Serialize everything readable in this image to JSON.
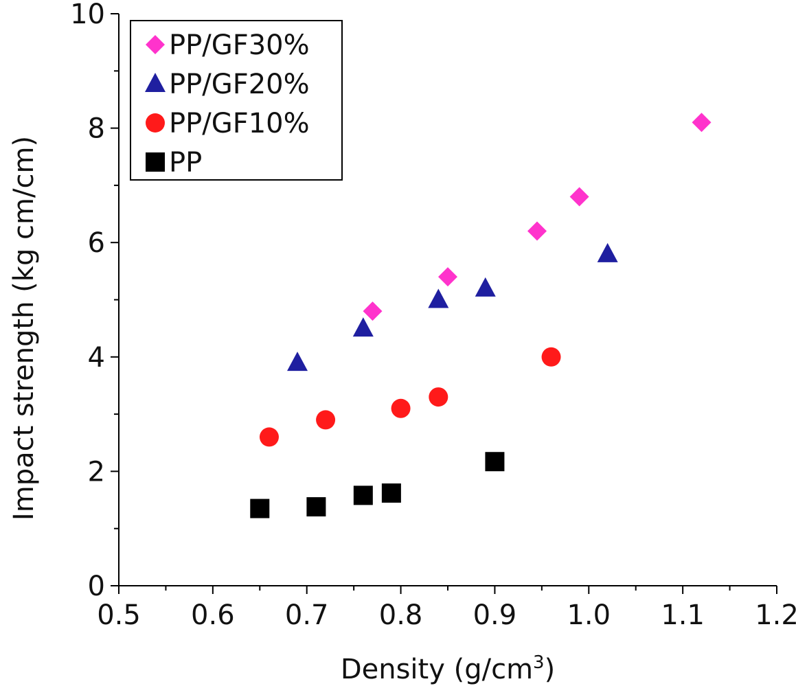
{
  "chart_data": {
    "type": "scatter",
    "title": "",
    "xlabel": "Density (g/cm",
    "xlabel_sup": "3",
    "xlabel_close": ")",
    "ylabel": "Impact strength (kg cm/cm)",
    "xlim": [
      0.5,
      1.2
    ],
    "ylim": [
      0,
      10
    ],
    "x_ticks": [
      0.5,
      0.6,
      0.7,
      0.8,
      0.9,
      1.0,
      1.1,
      1.2
    ],
    "x_tick_labels": [
      "0.5",
      "0.6",
      "0.7",
      "0.8",
      "0.9",
      "1.0",
      "1.1",
      "1.2"
    ],
    "y_ticks": [
      0,
      2,
      4,
      6,
      8,
      10
    ],
    "y_tick_labels": [
      "0",
      "2",
      "4",
      "6",
      "8",
      "10"
    ],
    "grid": false,
    "legend_position": "top-left",
    "series": [
      {
        "name": "PP/GF30%",
        "marker": "diamond",
        "color": "#ff33cc",
        "points": [
          [
            0.77,
            4.8
          ],
          [
            0.85,
            5.4
          ],
          [
            0.945,
            6.2
          ],
          [
            0.99,
            6.8
          ],
          [
            1.12,
            8.1
          ]
        ]
      },
      {
        "name": "PP/GF20%",
        "marker": "triangle",
        "color": "#1f1fa0",
        "points": [
          [
            0.69,
            3.9
          ],
          [
            0.76,
            4.5
          ],
          [
            0.84,
            5.0
          ],
          [
            0.89,
            5.2
          ],
          [
            1.02,
            5.8
          ]
        ]
      },
      {
        "name": "PP/GF10%",
        "marker": "circle",
        "color": "#ff1a1a",
        "points": [
          [
            0.66,
            2.6
          ],
          [
            0.72,
            2.9
          ],
          [
            0.8,
            3.1
          ],
          [
            0.84,
            3.3
          ],
          [
            0.96,
            4.0
          ]
        ]
      },
      {
        "name": "PP",
        "marker": "square",
        "color": "#000000",
        "points": [
          [
            0.65,
            1.35
          ],
          [
            0.71,
            1.38
          ],
          [
            0.76,
            1.58
          ],
          [
            0.79,
            1.62
          ],
          [
            0.9,
            2.17
          ]
        ]
      }
    ]
  }
}
